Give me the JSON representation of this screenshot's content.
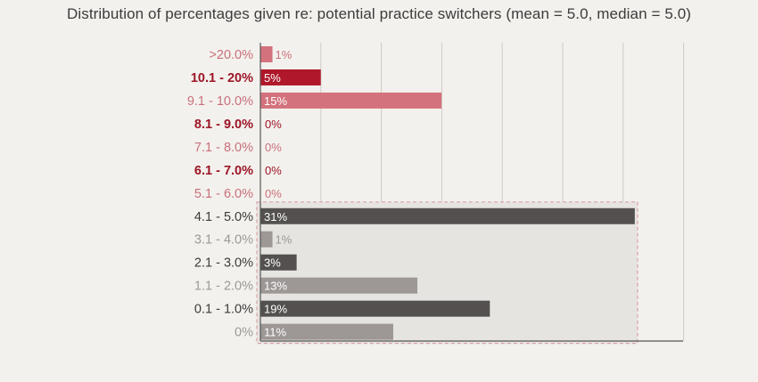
{
  "chart_data": {
    "type": "bar",
    "orientation": "horizontal",
    "title": "Distribution of percentages given re: potential practice switchers (mean = 5.0, median = 5.0)",
    "categories": [
      ">20.0%",
      "10.1 - 20%",
      "9.1 - 10.0%",
      "8.1 - 9.0%",
      "7.1 - 8.0%",
      "6.1 - 7.0%",
      "5.1 - 6.0%",
      "4.1 - 5.0%",
      "3.1 - 4.0%",
      "2.1 - 3.0%",
      "1.1 - 2.0%",
      "0.1 - 1.0%",
      "0%"
    ],
    "values": [
      1,
      5,
      15,
      0,
      0,
      0,
      0,
      31,
      1,
      3,
      13,
      19,
      11
    ],
    "value_labels": [
      "1%",
      "5%",
      "15%",
      "0%",
      "0%",
      "0%",
      "0%",
      "31%",
      "1%",
      "3%",
      "13%",
      "19%",
      "11%"
    ],
    "xlim": [
      0,
      35
    ],
    "grid": true,
    "highlight_box": "rows 4.1 - 5.0% to 0%",
    "colors": {
      "bar": [
        "#d3727c",
        "#b0172a",
        "#d3727c",
        "#b0172a",
        "#d3727c",
        "#b0172a",
        "#d3727c",
        "#545050",
        "#9d9896",
        "#545050",
        "#9d9896",
        "#545050",
        "#9d9896"
      ],
      "label": [
        "#c8707a",
        "#9c1526",
        "#c8707a",
        "#9c1526",
        "#c8707a",
        "#9c1526",
        "#c8707a",
        "#3d3b3b",
        "#9d9896",
        "#3d3b3b",
        "#9d9896",
        "#3d3b3b",
        "#9d9896"
      ],
      "label_weight": [
        "normal",
        "bold",
        "normal",
        "bold",
        "normal",
        "bold",
        "normal",
        "normal",
        "normal",
        "normal",
        "normal",
        "normal",
        "normal"
      ],
      "grid": "#cfcbc6",
      "axis": "#555555",
      "highlight_fill": "#e6e4e1",
      "highlight_border": "#d9a1a8"
    }
  }
}
